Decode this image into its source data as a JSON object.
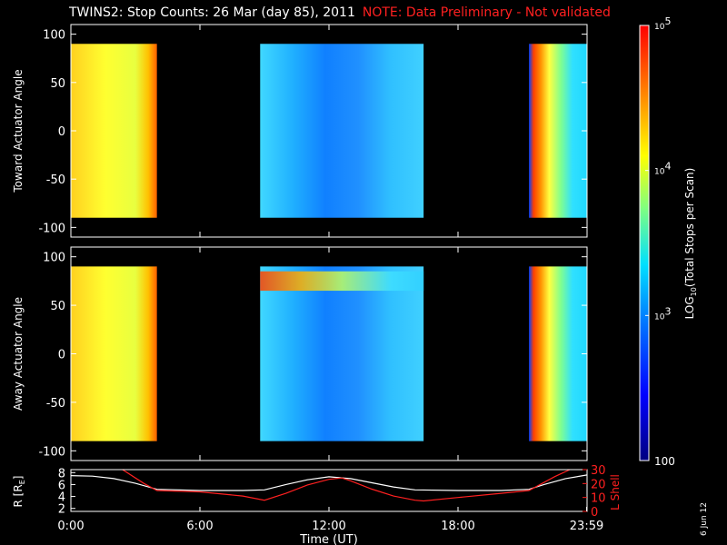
{
  "title": "TWINS2: Stop Counts: 26 Mar (day  85), 2011",
  "note": "NOTE: Data Preliminary - Not validated",
  "datestamp": "6 Jun 12",
  "colors": {
    "background": "#000000",
    "axes": "#ffffff",
    "note": "#ff2020",
    "l_shell": "#ff2020",
    "r_line": "#ffffff"
  },
  "chart_data": [
    {
      "type": "heatmap",
      "ylabel": "Toward Actuator Angle",
      "ylim": [
        -110,
        110
      ],
      "yticks": [
        "100",
        "50",
        "0",
        "-50",
        "-100"
      ],
      "ytick_values": [
        100,
        50,
        0,
        -50,
        -100
      ],
      "xlim": [
        0,
        24
      ],
      "data_y_range": [
        -90,
        90
      ],
      "blocks": [
        {
          "x_start": 0.0,
          "x_end": 4.0,
          "level": "high",
          "approx_counts": 20000
        },
        {
          "x_start": 8.8,
          "x_end": 16.4,
          "level": "mid",
          "approx_counts": 1500
        },
        {
          "x_start": 21.3,
          "x_end": 24.0,
          "level": "gradient",
          "approx_counts": 3000
        }
      ]
    },
    {
      "type": "heatmap",
      "ylabel": "Away Actuator Angle",
      "ylim": [
        -110,
        110
      ],
      "yticks": [
        "100",
        "50",
        "0",
        "-50",
        "-100"
      ],
      "ytick_values": [
        100,
        50,
        0,
        -50,
        -100
      ],
      "xlim": [
        0,
        24
      ],
      "data_y_range": [
        -90,
        90
      ],
      "blocks": [
        {
          "x_start": 0.0,
          "x_end": 4.0,
          "level": "high",
          "approx_counts": 20000
        },
        {
          "x_start": 8.8,
          "x_end": 16.4,
          "level": "mid",
          "approx_counts": 1500,
          "band": {
            "y_from": 65,
            "y_to": 85,
            "approx_counts": 30000
          }
        },
        {
          "x_start": 21.3,
          "x_end": 24.0,
          "level": "gradient",
          "approx_counts": 3000
        }
      ]
    },
    {
      "type": "line",
      "ylabel": "R [R",
      "ylabel_sub": "E",
      "ylabel_end": "]",
      "y2label": "L Shell",
      "xlabel": "Time (UT)",
      "xticks": [
        "0:00",
        "6:00",
        "12:00",
        "18:00",
        "23:59"
      ],
      "xtick_values": [
        0,
        6,
        12,
        18,
        23.98
      ],
      "xlim": [
        0,
        24
      ],
      "ylim": [
        1.5,
        8.5
      ],
      "yticks": [
        "8",
        "6",
        "4",
        "2"
      ],
      "ytick_values": [
        8,
        6,
        4,
        2
      ],
      "y2lim": [
        0,
        30
      ],
      "y2ticks": [
        "30",
        "20",
        "10",
        "0"
      ],
      "y2tick_values": [
        30,
        20,
        10,
        0
      ],
      "series": [
        {
          "axis": "left",
          "color": "#ffffff",
          "x": [
            0,
            1,
            2,
            3,
            4,
            6,
            8,
            9,
            10,
            11,
            12,
            13,
            14,
            15,
            16,
            18,
            20,
            21.3,
            22,
            23,
            24
          ],
          "y": [
            7.5,
            7.4,
            7.0,
            6.2,
            5.2,
            5.0,
            5.0,
            5.1,
            6.0,
            6.8,
            7.3,
            7.0,
            6.3,
            5.6,
            5.1,
            5.0,
            5.0,
            5.2,
            6.0,
            7.0,
            7.6
          ]
        },
        {
          "axis": "right",
          "color": "#ff2020",
          "x": [
            2.4,
            3.4,
            4.0,
            6,
            8,
            9,
            10,
            11,
            12,
            12.6,
            13,
            14,
            15,
            16,
            16.4,
            18,
            20,
            21.3,
            22.5,
            23.2
          ],
          "y": [
            30,
            20,
            15,
            14,
            11,
            8,
            13,
            19,
            23,
            24,
            22,
            16,
            11,
            8,
            7.5,
            10,
            13,
            15,
            25,
            30
          ]
        }
      ]
    }
  ],
  "colorbar": {
    "label": "LOG",
    "label_sub": "10",
    "label_rest": "(Total Stops per Scan)",
    "range": [
      100,
      100000
    ],
    "ticks": [
      {
        "value": 100000,
        "base": "10",
        "exp": "5"
      },
      {
        "value": 10000,
        "base": "10",
        "exp": "4"
      },
      {
        "value": 1000,
        "base": "10",
        "exp": "3"
      },
      {
        "value": 100,
        "text": "100"
      }
    ]
  }
}
